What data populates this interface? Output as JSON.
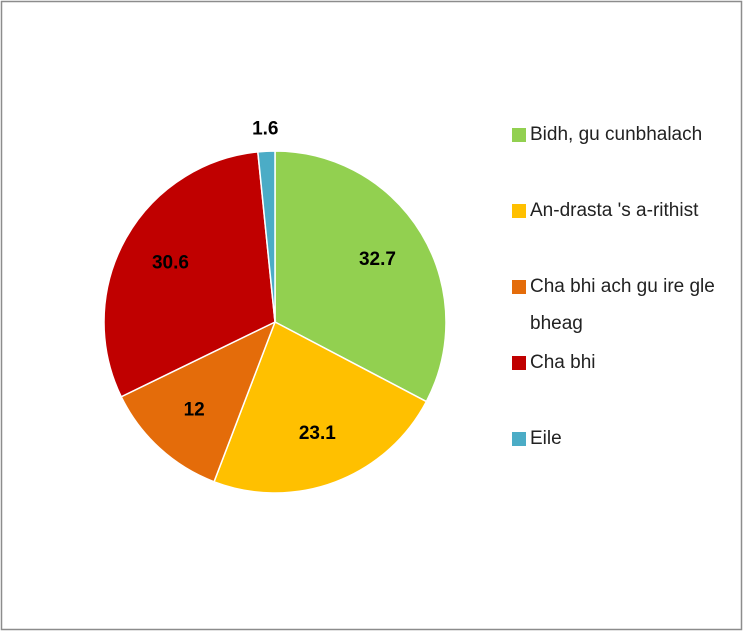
{
  "chart_data": {
    "type": "pie",
    "categories": [
      "Bidh, gu cunbhalach",
      "An-drasta 's a-rithist",
      "Cha bhi ach gu ire gle bheag",
      "Cha bhi",
      "Eile"
    ],
    "values": [
      32.7,
      23.1,
      12,
      30.6,
      1.6
    ],
    "colors": [
      "#92d050",
      "#ffc000",
      "#e46c0a",
      "#c00000",
      "#4bacc6"
    ],
    "legend": "right"
  }
}
